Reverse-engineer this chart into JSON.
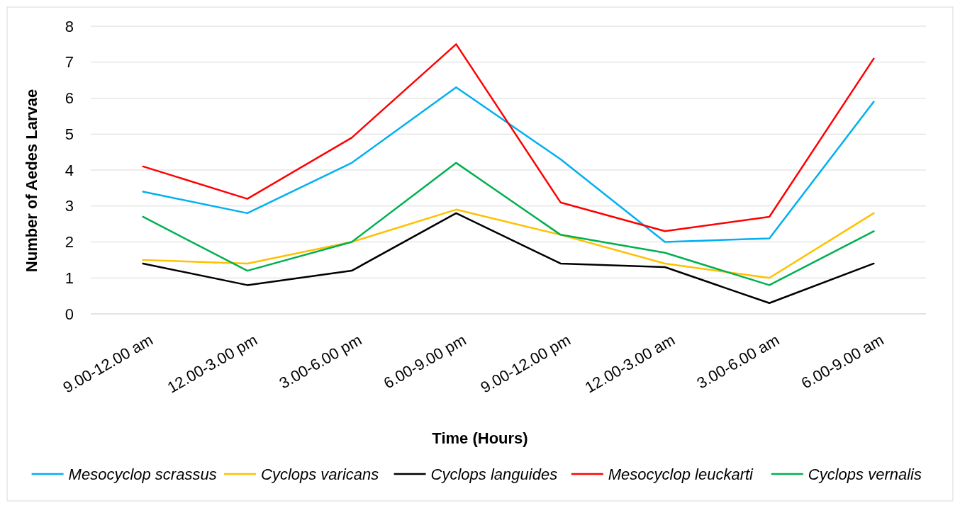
{
  "chart_data": {
    "type": "line",
    "xlabel": "Time (Hours)",
    "ylabel": "Number of Aedes Larvae",
    "categories": [
      "9.00-12.00 am",
      "12.00-3.00 pm",
      "3.00-6.00 pm",
      "6.00-9.00 pm",
      "9.00-12.00 pm",
      "12.00-3.00 am",
      "3.00-6.00 am",
      "6.00-9.00 am"
    ],
    "series": [
      {
        "name": "Mesocyclop scrassus",
        "color": "#00b0f0",
        "values": [
          3.4,
          2.8,
          4.2,
          6.3,
          4.3,
          2.0,
          2.1,
          5.9
        ]
      },
      {
        "name": "Cyclops varicans",
        "color": "#ffc000",
        "values": [
          1.5,
          1.4,
          2.0,
          2.9,
          2.2,
          1.4,
          1.0,
          2.8
        ]
      },
      {
        "name": "Cyclops languides",
        "color": "#000000",
        "values": [
          1.4,
          0.8,
          1.2,
          2.8,
          1.4,
          1.3,
          0.3,
          1.4
        ]
      },
      {
        "name": "Mesocyclop leuckarti",
        "color": "#ff0000",
        "values": [
          4.1,
          3.2,
          4.9,
          7.5,
          3.1,
          2.3,
          2.7,
          7.1
        ]
      },
      {
        "name": "Cyclops vernalis",
        "color": "#00b050",
        "values": [
          2.7,
          1.2,
          2.0,
          4.2,
          2.2,
          1.7,
          0.8,
          2.3
        ]
      }
    ],
    "ylim": [
      0,
      8
    ],
    "yticks": [
      0,
      1,
      2,
      3,
      4,
      5,
      6,
      7,
      8
    ],
    "grid": "y",
    "legend": "bottom",
    "marker": "none",
    "line_style": "solid"
  }
}
